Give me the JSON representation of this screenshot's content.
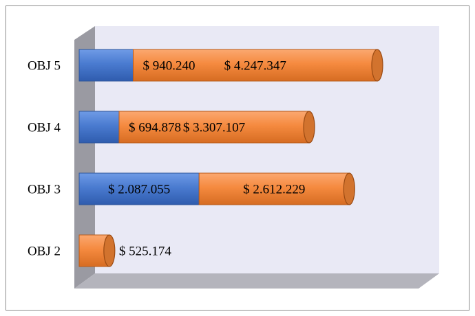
{
  "chart_data": {
    "type": "bar",
    "stacked": true,
    "orientation": "horizontal",
    "categories": [
      "OBJ 5",
      "OBJ 4",
      "OBJ 3",
      "OBJ 2"
    ],
    "series": [
      {
        "color": "#4a7bd0",
        "values": [
          940240,
          694878,
          2087055,
          null
        ],
        "value_labels": [
          "$ 940.240",
          "$ 694.878",
          "$ 2.087.055",
          null
        ]
      },
      {
        "color": "#f58a3f",
        "values": [
          4247347,
          3307107,
          2612229,
          525174
        ],
        "value_labels": [
          "$ 4.247.347",
          "$ 3.307.107",
          "$ 2.612.229",
          "$ 525.174"
        ]
      }
    ]
  }
}
